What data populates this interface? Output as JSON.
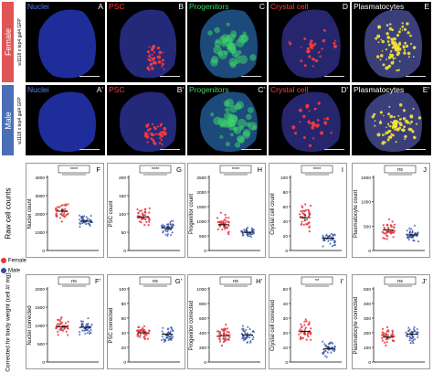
{
  "rows": {
    "female": {
      "label": "Female",
      "color": "#e05555",
      "genotype": "w1118 x tep4 gal4 GFP"
    },
    "male": {
      "label": "Male",
      "color": "#4a6fb5",
      "genotype": "w1118 x tep4 gal4 GFP"
    }
  },
  "image_panels": {
    "female": [
      {
        "label": "Nuclei",
        "letter": "A",
        "color": "#5b7cf0",
        "tissue": "#1f2d9a"
      },
      {
        "label": "PSC",
        "letter": "B",
        "color": "#ff3b3b",
        "tissue": "#24297a"
      },
      {
        "label": "Progenitors",
        "letter": "C",
        "color": "#3cd46a",
        "tissue": "#1c4a7a"
      },
      {
        "label": "Crystal cell",
        "letter": "D",
        "color": "#ff3b3b",
        "tissue": "#26266e"
      },
      {
        "label": "Plasmatocytes",
        "letter": "E",
        "color": "#ffffff",
        "tissue": "#3a3f7a"
      }
    ],
    "male": [
      {
        "label": "Nuclei",
        "letter": "A'",
        "color": "#5b7cf0",
        "tissue": "#1f2d9a"
      },
      {
        "label": "PSC",
        "letter": "B'",
        "color": "#ff3b3b",
        "tissue": "#24297a"
      },
      {
        "label": "Progenitors",
        "letter": "C'",
        "color": "#3cd46a",
        "tissue": "#1c4a7a"
      },
      {
        "label": "Crystal cell",
        "letter": "D'",
        "color": "#ff3b3b",
        "tissue": "#26266e"
      },
      {
        "label": "Plasmatocytes",
        "letter": "E'",
        "color": "#ffffff",
        "tissue": "#3a3f7a"
      }
    ]
  },
  "sections": {
    "raw": "Raw cell counts",
    "corrected": "Corrected for body weight (cell #/ mg)"
  },
  "legend": {
    "female": {
      "label": "Female",
      "color": "#e8343b"
    },
    "male": {
      "label": "Male",
      "color": "#2e4fa6"
    }
  },
  "chart_data": [
    {
      "type": "scatter",
      "panel": "F",
      "ylabel": "Nuclei count",
      "ylim": [
        0,
        4000
      ],
      "yticks": [
        0,
        1000,
        2000,
        3000,
        4000
      ],
      "sig": "****",
      "female": {
        "mean": 2150,
        "spread": 520
      },
      "male": {
        "mean": 1600,
        "spread": 350
      }
    },
    {
      "type": "scatter",
      "panel": "G",
      "ylabel": "PSC count",
      "ylim": [
        0,
        200
      ],
      "yticks": [
        0,
        50,
        100,
        150,
        200
      ],
      "sig": "****",
      "female": {
        "mean": 92,
        "spread": 24
      },
      "male": {
        "mean": 62,
        "spread": 20
      }
    },
    {
      "type": "scatter",
      "panel": "H",
      "ylabel": "Progenitor count",
      "ylim": [
        0,
        2500
      ],
      "yticks": [
        0,
        500,
        1000,
        1500,
        2000,
        2500
      ],
      "sig": "****",
      "female": {
        "mean": 880,
        "spread": 380
      },
      "male": {
        "mean": 620,
        "spread": 180
      }
    },
    {
      "type": "scatter",
      "panel": "I",
      "ylabel": "Crystal cell count",
      "ylim": [
        0,
        100
      ],
      "yticks": [
        0,
        20,
        40,
        60,
        80,
        100
      ],
      "sig": "****",
      "female": {
        "mean": 45,
        "spread": 18
      },
      "male": {
        "mean": 17,
        "spread": 9
      }
    },
    {
      "type": "scatter",
      "panel": "J",
      "ylabel": "Plasmatocyte count",
      "ylim": [
        0,
        1500
      ],
      "yticks": [
        0,
        500,
        1000,
        1500
      ],
      "sig": "ns",
      "female": {
        "mean": 420,
        "spread": 210
      },
      "male": {
        "mean": 320,
        "spread": 150
      }
    },
    {
      "type": "scatter",
      "panel": "F'",
      "ylabel": "Nuclei corrected",
      "ylim": [
        0,
        2000
      ],
      "yticks": [
        0,
        500,
        1000,
        1500,
        2000
      ],
      "sig": "ns",
      "female": {
        "mean": 960,
        "spread": 230
      },
      "male": {
        "mean": 950,
        "spread": 210
      }
    },
    {
      "type": "scatter",
      "panel": "G'",
      "ylabel": "PSC corrected",
      "ylim": [
        0,
        100
      ],
      "yticks": [
        0,
        20,
        40,
        60,
        80,
        100
      ],
      "sig": "ns",
      "female": {
        "mean": 40,
        "spread": 10
      },
      "male": {
        "mean": 38,
        "spread": 11
      }
    },
    {
      "type": "scatter",
      "panel": "H'",
      "ylabel": "Progenitor corrected",
      "ylim": [
        0,
        1000
      ],
      "yticks": [
        0,
        200,
        400,
        600,
        800,
        1000
      ],
      "sig": "ns",
      "female": {
        "mean": 360,
        "spread": 140
      },
      "male": {
        "mean": 370,
        "spread": 110
      }
    },
    {
      "type": "scatter",
      "panel": "I'",
      "ylabel": "Crystal cell corrected",
      "ylim": [
        0,
        50
      ],
      "yticks": [
        0,
        10,
        20,
        30,
        40,
        50
      ],
      "sig": "**",
      "female": {
        "mean": 21,
        "spread": 8
      },
      "male": {
        "mean": 9,
        "spread": 5
      }
    },
    {
      "type": "scatter",
      "panel": "J'",
      "ylabel": "Plasmatocyte corrected",
      "ylim": [
        0,
        500
      ],
      "yticks": [
        0,
        100,
        200,
        300,
        400,
        500
      ],
      "sig": "ns",
      "female": {
        "mean": 170,
        "spread": 80
      },
      "male": {
        "mean": 190,
        "spread": 70
      }
    }
  ]
}
